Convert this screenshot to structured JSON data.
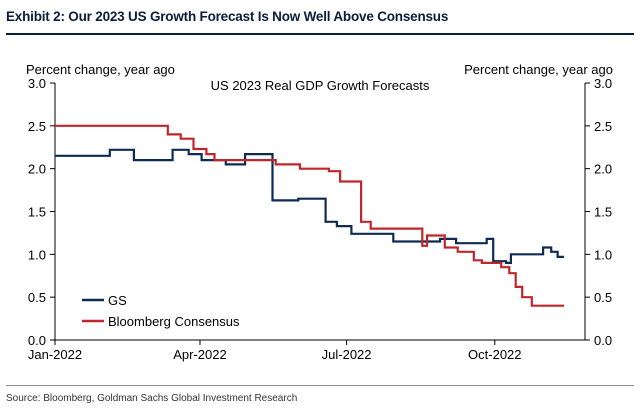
{
  "exhibit": {
    "title": "Exhibit 2: Our 2023 US Growth Forecast Is Now Well Above Consensus",
    "source": "Source: Bloomberg, Goldman Sachs Global Investment Research"
  },
  "chart_data": {
    "type": "line",
    "title": "US 2023 Real GDP Growth Forecasts",
    "ylabel_left": "Percent change, year ago",
    "ylabel_right": "Percent change, year ago",
    "ylim": [
      0.0,
      3.0
    ],
    "yticks": [
      "0.0",
      "0.5",
      "1.0",
      "1.5",
      "2.0",
      "2.5",
      "3.0"
    ],
    "xlim": [
      "2022-01-01",
      "2022-11-26"
    ],
    "xticks": [
      {
        "date": "2022-01-01",
        "label": "Jan-2022"
      },
      {
        "date": "2022-04-01",
        "label": "Apr-2022"
      },
      {
        "date": "2022-07-01",
        "label": "Jul-2022"
      },
      {
        "date": "2022-10-01",
        "label": "Oct-2022"
      }
    ],
    "legend_position": "bottom-left",
    "grid": false,
    "series": [
      {
        "name": "GS",
        "color": "#0e2b55",
        "points": [
          [
            "2022-01-01",
            2.15
          ],
          [
            "2022-02-04",
            2.15
          ],
          [
            "2022-02-04",
            2.22
          ],
          [
            "2022-02-19",
            2.22
          ],
          [
            "2022-02-19",
            2.1
          ],
          [
            "2022-03-15",
            2.1
          ],
          [
            "2022-03-15",
            2.22
          ],
          [
            "2022-03-25",
            2.22
          ],
          [
            "2022-03-25",
            2.17
          ],
          [
            "2022-04-02",
            2.17
          ],
          [
            "2022-04-02",
            2.1
          ],
          [
            "2022-04-17",
            2.1
          ],
          [
            "2022-04-17",
            2.05
          ],
          [
            "2022-04-29",
            2.05
          ],
          [
            "2022-04-29",
            2.17
          ],
          [
            "2022-05-16",
            2.17
          ],
          [
            "2022-05-16",
            1.63
          ],
          [
            "2022-06-01",
            1.63
          ],
          [
            "2022-06-01",
            1.65
          ],
          [
            "2022-06-18",
            1.65
          ],
          [
            "2022-06-18",
            1.38
          ],
          [
            "2022-06-25",
            1.38
          ],
          [
            "2022-06-25",
            1.33
          ],
          [
            "2022-07-04",
            1.33
          ],
          [
            "2022-07-04",
            1.24
          ],
          [
            "2022-07-30",
            1.24
          ],
          [
            "2022-07-30",
            1.15
          ],
          [
            "2022-08-28",
            1.15
          ],
          [
            "2022-08-28",
            1.18
          ],
          [
            "2022-09-07",
            1.18
          ],
          [
            "2022-09-07",
            1.13
          ],
          [
            "2022-09-26",
            1.13
          ],
          [
            "2022-09-26",
            1.18
          ],
          [
            "2022-09-30",
            1.18
          ],
          [
            "2022-09-30",
            0.92
          ],
          [
            "2022-10-08",
            0.92
          ],
          [
            "2022-10-08",
            0.9
          ],
          [
            "2022-10-11",
            0.9
          ],
          [
            "2022-10-11",
            1.0
          ],
          [
            "2022-10-31",
            1.0
          ],
          [
            "2022-10-31",
            1.08
          ],
          [
            "2022-11-05",
            1.08
          ],
          [
            "2022-11-05",
            1.03
          ],
          [
            "2022-11-09",
            1.03
          ],
          [
            "2022-11-09",
            0.97
          ],
          [
            "2022-11-13",
            0.97
          ]
        ]
      },
      {
        "name": "Bloomberg Consensus",
        "color": "#c0272d",
        "points": [
          [
            "2022-01-01",
            2.5
          ],
          [
            "2022-03-12",
            2.5
          ],
          [
            "2022-03-12",
            2.4
          ],
          [
            "2022-03-20",
            2.4
          ],
          [
            "2022-03-20",
            2.35
          ],
          [
            "2022-03-28",
            2.35
          ],
          [
            "2022-03-28",
            2.23
          ],
          [
            "2022-04-05",
            2.23
          ],
          [
            "2022-04-05",
            2.17
          ],
          [
            "2022-04-10",
            2.17
          ],
          [
            "2022-04-10",
            2.1
          ],
          [
            "2022-05-18",
            2.1
          ],
          [
            "2022-05-18",
            2.05
          ],
          [
            "2022-06-02",
            2.05
          ],
          [
            "2022-06-02",
            2.0
          ],
          [
            "2022-06-20",
            2.0
          ],
          [
            "2022-06-20",
            1.97
          ],
          [
            "2022-06-27",
            1.97
          ],
          [
            "2022-06-27",
            1.85
          ],
          [
            "2022-07-10",
            1.85
          ],
          [
            "2022-07-10",
            1.38
          ],
          [
            "2022-07-16",
            1.38
          ],
          [
            "2022-07-16",
            1.3
          ],
          [
            "2022-08-17",
            1.3
          ],
          [
            "2022-08-17",
            1.1
          ],
          [
            "2022-08-20",
            1.1
          ],
          [
            "2022-08-20",
            1.22
          ],
          [
            "2022-08-31",
            1.22
          ],
          [
            "2022-08-31",
            1.08
          ],
          [
            "2022-09-08",
            1.08
          ],
          [
            "2022-09-08",
            1.03
          ],
          [
            "2022-09-18",
            1.03
          ],
          [
            "2022-09-18",
            0.93
          ],
          [
            "2022-09-23",
            0.93
          ],
          [
            "2022-09-23",
            0.9
          ],
          [
            "2022-10-05",
            0.9
          ],
          [
            "2022-10-05",
            0.85
          ],
          [
            "2022-10-10",
            0.85
          ],
          [
            "2022-10-10",
            0.78
          ],
          [
            "2022-10-14",
            0.78
          ],
          [
            "2022-10-14",
            0.62
          ],
          [
            "2022-10-18",
            0.62
          ],
          [
            "2022-10-18",
            0.5
          ],
          [
            "2022-10-24",
            0.5
          ],
          [
            "2022-10-24",
            0.4
          ],
          [
            "2022-11-13",
            0.4
          ]
        ]
      }
    ]
  }
}
